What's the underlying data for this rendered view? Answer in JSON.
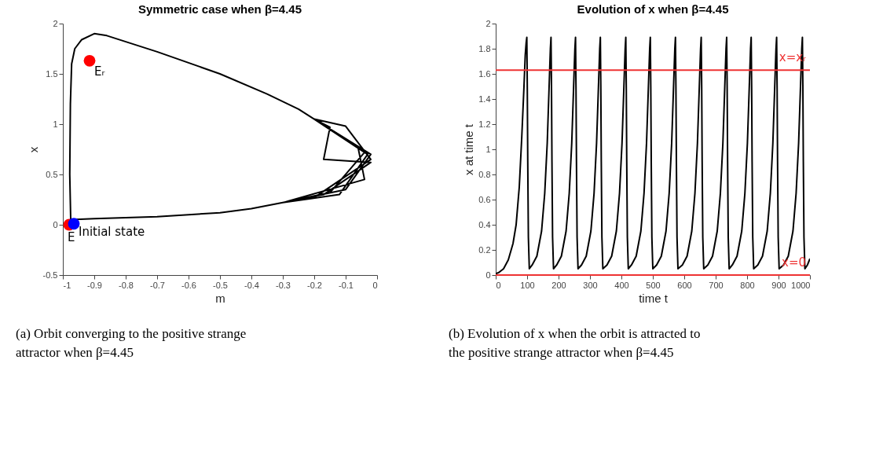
{
  "chart_data": [
    {
      "type": "line",
      "title": "Symmetric case when β=4.45",
      "xlabel": "m",
      "ylabel": "x",
      "xlim": [
        -1,
        0
      ],
      "xticks": [
        -1,
        -0.9,
        -0.8,
        -0.7,
        -0.6,
        -0.5,
        -0.4,
        -0.3,
        -0.2,
        -0.1,
        0
      ],
      "ylim": [
        -0.5,
        2
      ],
      "yticks": [
        -0.5,
        0,
        0.5,
        1,
        1.5,
        2
      ],
      "grid": false,
      "legend": false,
      "line_style": "solid",
      "series": [
        {
          "type": "line",
          "color": "#000000",
          "marker": "none",
          "x": [
            -0.965,
            -0.975,
            -0.978,
            -0.976,
            -0.972,
            -0.962,
            -0.94,
            -0.9,
            -0.86,
            -0.7,
            -0.5,
            -0.35,
            -0.25,
            -0.2,
            -0.06,
            -0.04,
            -0.3,
            -0.4,
            -0.5,
            -0.7,
            -0.9,
            -0.975,
            -0.978,
            -0.976,
            -0.972,
            -0.962,
            -0.94,
            -0.9,
            -0.86,
            -0.7,
            -0.5,
            -0.35,
            -0.25,
            -0.2,
            -0.02,
            -0.1,
            -0.3,
            -0.4,
            -0.5,
            -0.7,
            -0.9,
            -0.975,
            -0.978,
            -0.976,
            -0.972,
            -0.962,
            -0.94,
            -0.9,
            -0.86,
            -0.7,
            -0.5,
            -0.35,
            -0.25,
            -0.2,
            -0.15,
            -0.17,
            -0.02,
            -0.17,
            -0.3,
            -0.4,
            -0.5,
            -0.7,
            -0.9,
            -0.975,
            -0.978,
            -0.976,
            -0.972,
            -0.962,
            -0.94,
            -0.9,
            -0.86,
            -0.7,
            -0.5,
            -0.35,
            -0.25,
            -0.2,
            -0.04,
            -0.15,
            -0.3,
            -0.4,
            -0.5,
            -0.7,
            -0.9,
            -0.975,
            -0.978,
            -0.976,
            -0.972,
            -0.962,
            -0.94,
            -0.9,
            -0.86,
            -0.7,
            -0.5,
            -0.35,
            -0.25,
            -0.2,
            -0.1,
            -0.02,
            -0.2,
            -0.3,
            -0.4,
            -0.5,
            -0.7,
            -0.9,
            -0.975,
            -0.978,
            -0.976,
            -0.972,
            -0.962,
            -0.94,
            -0.9,
            -0.86,
            -0.7,
            -0.5,
            -0.35,
            -0.25,
            -0.2,
            -0.03,
            -0.12,
            -0.3,
            -0.4,
            -0.5,
            -0.7,
            -0.9,
            -0.975
          ],
          "values": [
            0.01,
            0.05,
            0.5,
            1.2,
            1.6,
            1.75,
            1.84,
            1.9,
            1.88,
            1.72,
            1.5,
            1.3,
            1.15,
            1.05,
            0.76,
            0.45,
            0.22,
            0.16,
            0.12,
            0.08,
            0.06,
            0.05,
            0.5,
            1.2,
            1.6,
            1.75,
            1.84,
            1.9,
            1.88,
            1.72,
            1.5,
            1.3,
            1.15,
            1.05,
            0.7,
            0.35,
            0.22,
            0.16,
            0.12,
            0.08,
            0.06,
            0.05,
            0.5,
            1.2,
            1.6,
            1.75,
            1.84,
            1.9,
            1.88,
            1.72,
            1.5,
            1.3,
            1.15,
            1.05,
            0.97,
            0.65,
            0.62,
            0.3,
            0.22,
            0.16,
            0.12,
            0.08,
            0.06,
            0.05,
            0.5,
            1.2,
            1.6,
            1.75,
            1.84,
            1.9,
            1.88,
            1.72,
            1.5,
            1.3,
            1.15,
            1.05,
            0.72,
            0.32,
            0.22,
            0.16,
            0.12,
            0.08,
            0.06,
            0.05,
            0.5,
            1.2,
            1.6,
            1.75,
            1.84,
            1.9,
            1.88,
            1.72,
            1.5,
            1.3,
            1.15,
            1.05,
            0.98,
            0.65,
            0.27,
            0.22,
            0.16,
            0.12,
            0.08,
            0.06,
            0.05,
            0.5,
            1.2,
            1.6,
            1.75,
            1.84,
            1.9,
            1.88,
            1.72,
            1.5,
            1.3,
            1.15,
            1.05,
            0.7,
            0.3,
            0.22,
            0.16,
            0.12,
            0.08,
            0.06,
            0.05
          ]
        },
        {
          "type": "scatter",
          "name": "Eᵣ",
          "color": "#ff0000",
          "marker": "circle",
          "x": [
            -0.915
          ],
          "values": [
            1.63
          ]
        },
        {
          "type": "scatter",
          "name": "E",
          "color": "#ff0000",
          "marker": "circle",
          "x": [
            -0.98
          ],
          "values": [
            0
          ]
        },
        {
          "type": "scatter",
          "name": "Initial state",
          "color": "#0000ff",
          "marker": "circle",
          "x": [
            -0.965
          ],
          "values": [
            0.01
          ]
        }
      ],
      "annotations": [
        "(a) Orbit converging to the positive strange attractor when β=4.45"
      ]
    },
    {
      "type": "line",
      "title": "Evolution of x when β=4.45",
      "xlabel": "time t",
      "ylabel": "x at time t",
      "xlim": [
        0,
        1000
      ],
      "xticks": [
        0,
        100,
        200,
        300,
        400,
        500,
        600,
        700,
        800,
        900,
        1000
      ],
      "ylim": [
        0,
        2
      ],
      "yticks": [
        0,
        0.2,
        0.4,
        0.6,
        0.8,
        1,
        1.2,
        1.4,
        1.6,
        1.8,
        2
      ],
      "grid": false,
      "legend": false,
      "line_style": "solid",
      "series": [
        {
          "type": "line",
          "color": "#000000",
          "marker": "none",
          "x": [
            0,
            10,
            25,
            40,
            55,
            65,
            75,
            83,
            90,
            94,
            97,
            99,
            100.5,
            102,
            104,
            107,
            116,
            131,
            146,
            156,
            164,
            170,
            174,
            176,
            177.5,
            179,
            181,
            184,
            194,
            209,
            224,
            234,
            242,
            248,
            252,
            254,
            255.5,
            257,
            259,
            262,
            273,
            288,
            303,
            313,
            321,
            327,
            331,
            333,
            334.5,
            336,
            338,
            341,
            354,
            369,
            384,
            394,
            402,
            408,
            412,
            414,
            415.5,
            417,
            419,
            422,
            432,
            447,
            462,
            472,
            480,
            486,
            490,
            492,
            493.5,
            495,
            497,
            500,
            512,
            527,
            542,
            552,
            560,
            566,
            570,
            572,
            573.5,
            575,
            577,
            580,
            594,
            609,
            624,
            634,
            642,
            648,
            652,
            654,
            655.5,
            657,
            659,
            662,
            675,
            690,
            705,
            715,
            723,
            729,
            733,
            735,
            736.5,
            738,
            740,
            743,
            753,
            768,
            783,
            793,
            801,
            807,
            811,
            813,
            814.5,
            816,
            818,
            821,
            834,
            849,
            864,
            874,
            882,
            888,
            892,
            894,
            895.5,
            897,
            899,
            902,
            916,
            931,
            946,
            956,
            964,
            970,
            974,
            976,
            977.5,
            979,
            981,
            984,
            992,
            1000
          ],
          "values": [
            0.01,
            0.02,
            0.05,
            0.12,
            0.25,
            0.4,
            0.7,
            1.1,
            1.5,
            1.75,
            1.85,
            1.89,
            1.5,
            0.9,
            0.3,
            0.05,
            0.08,
            0.15,
            0.35,
            0.65,
            1.05,
            1.5,
            1.8,
            1.89,
            1.5,
            0.9,
            0.3,
            0.05,
            0.08,
            0.15,
            0.35,
            0.65,
            1.05,
            1.5,
            1.8,
            1.89,
            1.5,
            0.9,
            0.3,
            0.05,
            0.08,
            0.15,
            0.35,
            0.65,
            1.05,
            1.5,
            1.8,
            1.89,
            1.5,
            0.9,
            0.3,
            0.05,
            0.08,
            0.15,
            0.35,
            0.65,
            1.05,
            1.5,
            1.8,
            1.89,
            1.5,
            0.9,
            0.3,
            0.05,
            0.08,
            0.15,
            0.35,
            0.65,
            1.05,
            1.5,
            1.8,
            1.89,
            1.5,
            0.9,
            0.3,
            0.05,
            0.08,
            0.15,
            0.35,
            0.65,
            1.05,
            1.5,
            1.8,
            1.89,
            1.5,
            0.9,
            0.3,
            0.05,
            0.08,
            0.15,
            0.35,
            0.65,
            1.05,
            1.5,
            1.8,
            1.89,
            1.5,
            0.9,
            0.3,
            0.05,
            0.08,
            0.15,
            0.35,
            0.65,
            1.05,
            1.5,
            1.8,
            1.89,
            1.5,
            0.9,
            0.3,
            0.05,
            0.08,
            0.15,
            0.35,
            0.65,
            1.05,
            1.5,
            1.8,
            1.89,
            1.5,
            0.9,
            0.3,
            0.05,
            0.08,
            0.15,
            0.35,
            0.65,
            1.05,
            1.5,
            1.8,
            1.89,
            1.5,
            0.9,
            0.3,
            0.05,
            0.08,
            0.15,
            0.35,
            0.65,
            1.05,
            1.5,
            1.8,
            1.89,
            1.5,
            0.9,
            0.3,
            0.05,
            0.08,
            0.13
          ]
        }
      ],
      "ref_lines": [
        {
          "axis": "y",
          "value": 1.63,
          "label": "x=xᵣ",
          "color": "#ee3333"
        },
        {
          "axis": "y",
          "value": 0,
          "label": "x=0",
          "color": "#ee3333"
        }
      ],
      "annotations": [
        "(b) Evolution of x when the orbit is attracted to the positive strange attractor when β=4.45"
      ]
    }
  ]
}
